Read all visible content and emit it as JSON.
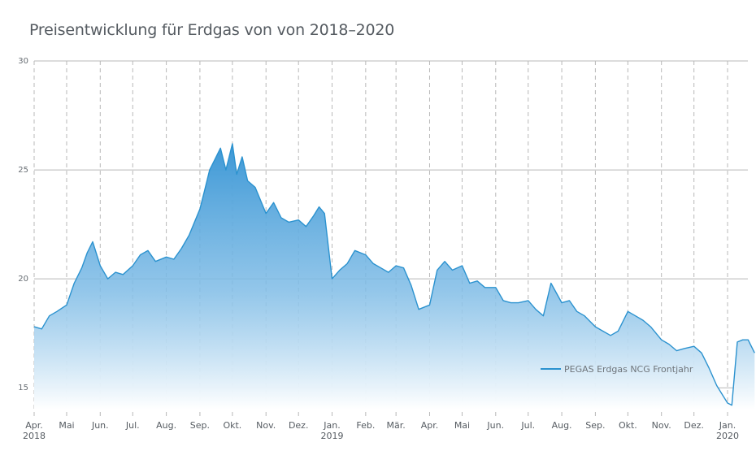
{
  "chart_data": {
    "type": "area",
    "title": "Preisentwicklung für Erdgas von von 2018–2020",
    "xlabel": "",
    "ylabel": "",
    "ylim": [
      14,
      30
    ],
    "yticks": [
      15,
      20,
      25,
      30
    ],
    "grid": true,
    "legend_position": "bottom-right",
    "colors": {
      "line": "#2b92cf",
      "fill_top": "#3d98d6",
      "fill_bottom": "#ffffff",
      "grid": "#b8b8b8"
    },
    "x_ticks": [
      {
        "label": "Apr.",
        "sub": "2018"
      },
      {
        "label": "Mai"
      },
      {
        "label": "Jun."
      },
      {
        "label": "Jul."
      },
      {
        "label": "Aug."
      },
      {
        "label": "Sep."
      },
      {
        "label": "Okt."
      },
      {
        "label": "Nov."
      },
      {
        "label": "Dez."
      },
      {
        "label": "Jan.",
        "sub": "2019"
      },
      {
        "label": "Feb."
      },
      {
        "label": "Mär."
      },
      {
        "label": "Apr."
      },
      {
        "label": "Mai"
      },
      {
        "label": "Jun."
      },
      {
        "label": "Jul."
      },
      {
        "label": "Aug."
      },
      {
        "label": "Sep."
      },
      {
        "label": "Okt."
      },
      {
        "label": "Nov."
      },
      {
        "label": "Dez."
      },
      {
        "label": "Jan.",
        "sub": "2020"
      }
    ],
    "series": [
      {
        "name": "PEGAS Erdgas NCG Frontjahr",
        "x": [
          "2018-04-01",
          "2018-04-08",
          "2018-04-15",
          "2018-04-22",
          "2018-05-01",
          "2018-05-08",
          "2018-05-15",
          "2018-05-20",
          "2018-05-25",
          "2018-06-01",
          "2018-06-08",
          "2018-06-15",
          "2018-06-22",
          "2018-07-01",
          "2018-07-08",
          "2018-07-15",
          "2018-07-22",
          "2018-08-01",
          "2018-08-08",
          "2018-08-15",
          "2018-08-22",
          "2018-09-01",
          "2018-09-05",
          "2018-09-10",
          "2018-09-15",
          "2018-09-20",
          "2018-09-25",
          "2018-10-01",
          "2018-10-05",
          "2018-10-10",
          "2018-10-15",
          "2018-10-22",
          "2018-11-01",
          "2018-11-08",
          "2018-11-15",
          "2018-11-22",
          "2018-12-01",
          "2018-12-08",
          "2018-12-15",
          "2018-12-20",
          "2018-12-25",
          "2019-01-01",
          "2019-01-08",
          "2019-01-15",
          "2019-01-22",
          "2019-02-01",
          "2019-02-08",
          "2019-02-15",
          "2019-02-22",
          "2019-03-01",
          "2019-03-08",
          "2019-03-15",
          "2019-03-22",
          "2019-04-01",
          "2019-04-08",
          "2019-04-15",
          "2019-04-22",
          "2019-05-01",
          "2019-05-08",
          "2019-05-15",
          "2019-05-22",
          "2019-06-01",
          "2019-06-08",
          "2019-06-15",
          "2019-06-22",
          "2019-07-01",
          "2019-07-08",
          "2019-07-15",
          "2019-07-22",
          "2019-08-01",
          "2019-08-08",
          "2019-08-15",
          "2019-08-22",
          "2019-09-01",
          "2019-09-08",
          "2019-09-15",
          "2019-09-22",
          "2019-10-01",
          "2019-10-08",
          "2019-10-15",
          "2019-10-22",
          "2019-11-01",
          "2019-11-08",
          "2019-11-15",
          "2019-11-22",
          "2019-12-01",
          "2019-12-08",
          "2019-12-15",
          "2019-12-22",
          "2020-01-01",
          "2020-01-05",
          "2020-01-10",
          "2020-01-15",
          "2020-01-20",
          "2020-01-26"
        ],
        "y": [
          17.8,
          17.7,
          18.3,
          18.5,
          18.8,
          19.8,
          20.5,
          21.2,
          21.7,
          20.6,
          20.0,
          20.3,
          20.2,
          20.6,
          21.1,
          21.3,
          20.8,
          21.0,
          20.9,
          21.4,
          22.0,
          23.2,
          24.0,
          25.0,
          25.5,
          26.0,
          25.0,
          26.2,
          24.8,
          25.6,
          24.5,
          24.2,
          23.0,
          23.5,
          22.8,
          22.6,
          22.7,
          22.4,
          22.9,
          23.3,
          23.0,
          20.0,
          20.4,
          20.7,
          21.3,
          21.1,
          20.7,
          20.5,
          20.3,
          20.6,
          20.5,
          19.7,
          18.6,
          18.8,
          20.4,
          20.8,
          20.4,
          20.6,
          19.8,
          19.9,
          19.6,
          19.6,
          19.0,
          18.9,
          18.9,
          19.0,
          18.6,
          18.3,
          19.8,
          18.9,
          19.0,
          18.5,
          18.3,
          17.8,
          17.6,
          17.4,
          17.6,
          18.5,
          18.3,
          18.1,
          17.8,
          17.2,
          17.0,
          16.7,
          16.8,
          16.9,
          16.6,
          15.9,
          15.1,
          14.3,
          14.2,
          17.1,
          17.2,
          17.2,
          16.6
        ]
      }
    ]
  }
}
